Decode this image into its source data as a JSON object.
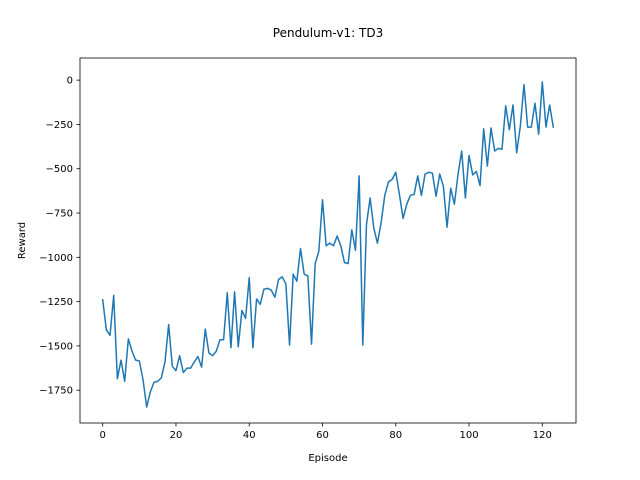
{
  "chart_data": {
    "type": "line",
    "title": "Pendulum-v1: TD3",
    "xlabel": "Episode",
    "ylabel": "Reward",
    "xlim": [
      -6.2,
      129.2
    ],
    "ylim": [
      -1935,
      125
    ],
    "x_ticks": [
      0,
      20,
      40,
      60,
      80,
      100,
      120
    ],
    "y_ticks": [
      0,
      -250,
      -500,
      -750,
      -1000,
      -1250,
      -1500,
      -1750
    ],
    "x_tick_labels": [
      "0",
      "20",
      "40",
      "60",
      "80",
      "100",
      "120"
    ],
    "y_tick_labels": [
      "0",
      "−250",
      "−500",
      "−750",
      "−1000",
      "−1250",
      "−1500",
      "−1750"
    ],
    "grid": false,
    "line_color": "#1f77b4",
    "series": [
      {
        "name": "",
        "x": [
          0,
          1,
          2,
          3,
          4,
          5,
          6,
          7,
          8,
          9,
          10,
          11,
          12,
          13,
          14,
          15,
          16,
          17,
          18,
          19,
          20,
          21,
          22,
          23,
          24,
          25,
          26,
          27,
          28,
          29,
          30,
          31,
          32,
          33,
          34,
          35,
          36,
          37,
          38,
          39,
          40,
          41,
          42,
          43,
          44,
          45,
          46,
          47,
          48,
          49,
          50,
          51,
          52,
          53,
          54,
          55,
          56,
          57,
          58,
          59,
          60,
          61,
          62,
          63,
          64,
          65,
          66,
          67,
          68,
          69,
          70,
          71,
          72,
          73,
          74,
          75,
          76,
          77,
          78,
          79,
          80,
          81,
          82,
          83,
          84,
          85,
          86,
          87,
          88,
          89,
          90,
          91,
          92,
          93,
          94,
          95,
          96,
          97,
          98,
          99,
          100,
          101,
          102,
          103,
          104,
          105,
          106,
          107,
          108,
          109,
          110,
          111,
          112,
          113,
          114,
          115,
          116,
          117,
          118,
          119,
          120,
          121,
          122,
          123
        ],
        "y": [
          -1240,
          -1410,
          -1440,
          -1215,
          -1685,
          -1580,
          -1700,
          -1460,
          -1530,
          -1580,
          -1585,
          -1690,
          -1845,
          -1760,
          -1705,
          -1700,
          -1680,
          -1590,
          -1380,
          -1615,
          -1640,
          -1555,
          -1650,
          -1625,
          -1625,
          -1590,
          -1560,
          -1620,
          -1405,
          -1540,
          -1555,
          -1530,
          -1465,
          -1465,
          -1200,
          -1510,
          -1195,
          -1505,
          -1300,
          -1345,
          -1115,
          -1510,
          -1235,
          -1265,
          -1180,
          -1175,
          -1185,
          -1225,
          -1125,
          -1110,
          -1150,
          -1495,
          -1095,
          -1135,
          -950,
          -1095,
          -1105,
          -1490,
          -1035,
          -965,
          -675,
          -935,
          -920,
          -935,
          -880,
          -935,
          -1030,
          -1035,
          -845,
          -960,
          -540,
          -1495,
          -815,
          -665,
          -835,
          -920,
          -805,
          -650,
          -575,
          -560,
          -520,
          -645,
          -780,
          -700,
          -650,
          -645,
          -540,
          -650,
          -530,
          -520,
          -525,
          -655,
          -530,
          -600,
          -830,
          -610,
          -700,
          -530,
          -400,
          -665,
          -425,
          -535,
          -515,
          -595,
          -275,
          -485,
          -270,
          -400,
          -385,
          -390,
          -145,
          -280,
          -140,
          -410,
          -260,
          -25,
          -265,
          -265,
          -130,
          -305,
          -10,
          -265,
          -140,
          -265
        ]
      }
    ]
  }
}
